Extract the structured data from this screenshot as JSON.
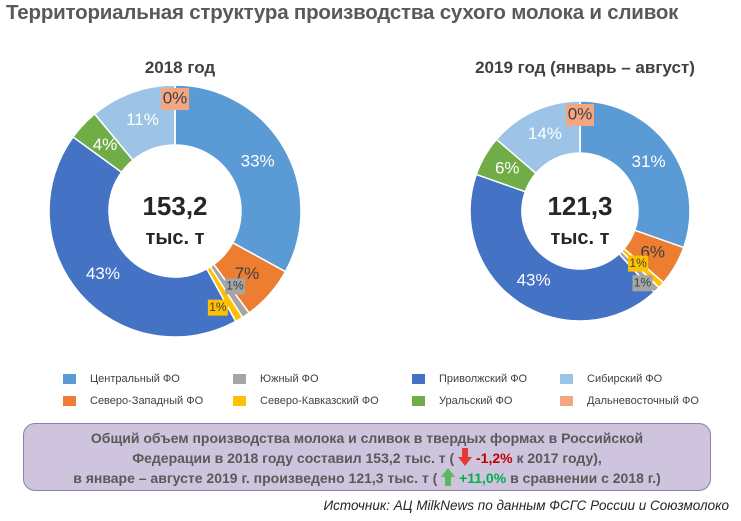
{
  "title": "Территориальная структура  производства сухого  молока и сливок",
  "legend": [
    {
      "label": "Центральный ФО",
      "color": "#5b9bd5"
    },
    {
      "label": "Южный ФО",
      "color": "#a5a5a5"
    },
    {
      "label": "Приволжский ФО",
      "color": "#4472c4"
    },
    {
      "label": "Сибирский ФО",
      "color": "#9dc3e6"
    },
    {
      "label": "Северо-Западный ФО",
      "color": "#ed7d31"
    },
    {
      "label": "Северо-Кавказский ФО",
      "color": "#ffc000"
    },
    {
      "label": "Уральский ФО",
      "color": "#70ad47"
    },
    {
      "label": "Дальневосточный ФО",
      "color": "#f4a582"
    }
  ],
  "chart_data": [
    {
      "type": "donut",
      "title": "2018 год",
      "center_value": "153,2",
      "center_unit": "тыс. т",
      "categories": [
        "Центральный ФО",
        "Северо-Западный ФО",
        "Южный ФО",
        "Северо-Кавказский ФО",
        "Приволжский ФО",
        "Уральский ФО",
        "Сибирский ФО",
        "Дальневосточный ФО"
      ],
      "values": [
        33,
        7,
        1,
        1,
        43,
        4,
        11,
        0
      ],
      "labels": [
        "33%",
        "7%",
        "1%",
        "1%",
        "43%",
        "4%",
        "11%",
        "0%"
      ]
    },
    {
      "type": "donut",
      "title": "2019 год (январь – август)",
      "center_value": "121,3",
      "center_unit": "тыс. т",
      "categories": [
        "Центральный ФО",
        "Северо-Западный ФО",
        "Северо-Кавказский ФО",
        "Южный ФО",
        "Приволжский ФО",
        "Уральский ФО",
        "Сибирский ФО",
        "Дальневосточный ФО"
      ],
      "values": [
        31,
        6,
        1,
        1,
        43,
        6,
        14,
        0
      ],
      "labels": [
        "31%",
        "6%",
        "1%",
        "1%",
        "43%",
        "6%",
        "14%",
        "0%"
      ]
    }
  ],
  "summary": {
    "line1": "Общий объем производства молока и сливок в твердых формах в Российской",
    "line2_pre": "Федерации  в 2018 году составил 153,2 тыс. т (",
    "line2_change": "-1,2%",
    "line2_post": "к 2017 году),",
    "line3_pre": "в январе – августе  2019  г. произведено  121,3 тыс. т (",
    "line3_change": "+11,0%",
    "line3_post": "в сравнении с 2018 г.)"
  },
  "source": "Источник: АЦ MilkNews по данным ФСГС России и Союзмолоко"
}
